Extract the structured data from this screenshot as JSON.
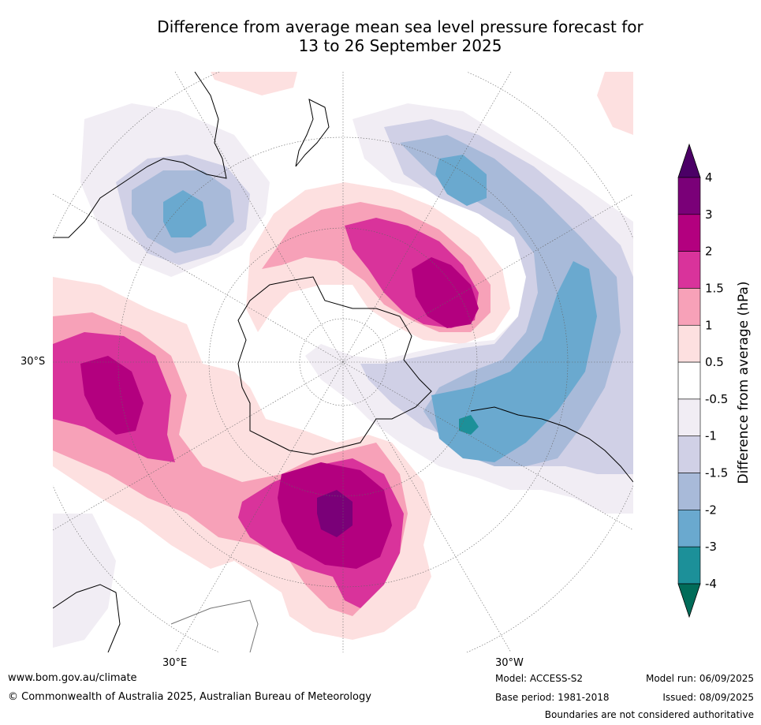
{
  "title": {
    "line1": "Difference from average mean sea level pressure forecast for",
    "line2": "13 to 26 September 2025"
  },
  "map_labels": {
    "lat_30s": "30°S",
    "lon_30e": "30°E",
    "lon_30w": "30°W"
  },
  "colorbar": {
    "label": "Difference from average (hPa)",
    "levels": [
      {
        "value": "4",
        "color": "#4b0066"
      },
      {
        "value": "3",
        "color": "#7a0078"
      },
      {
        "value": "2",
        "color": "#b3007f"
      },
      {
        "value": "1.5",
        "color": "#d9339b"
      },
      {
        "value": "1",
        "color": "#f7a1b8"
      },
      {
        "value": "0.5",
        "color": "#fde0e0"
      },
      {
        "value": "-0.5",
        "color": "#ffffff"
      },
      {
        "value": "-1",
        "color": "#f1edf4"
      },
      {
        "value": "-1.5",
        "color": "#d0d0e6"
      },
      {
        "value": "-2",
        "color": "#a8bad9"
      },
      {
        "value": "-3",
        "color": "#6aa9cf"
      },
      {
        "value": "-4",
        "color": "#1c9099"
      }
    ],
    "bottom_color": "#016c59"
  },
  "footer": {
    "website": "www.bom.gov.au/climate",
    "copyright": "© Commonwealth of Australia 2025, Australian Bureau of Meteorology",
    "model": "Model: ACCESS-S2",
    "base_period": "Base period: 1981-2018",
    "model_run": "Model run: 06/09/2025",
    "issued": "Issued: 08/09/2025",
    "disclaimer": "Boundaries are not considered authoritative"
  }
}
